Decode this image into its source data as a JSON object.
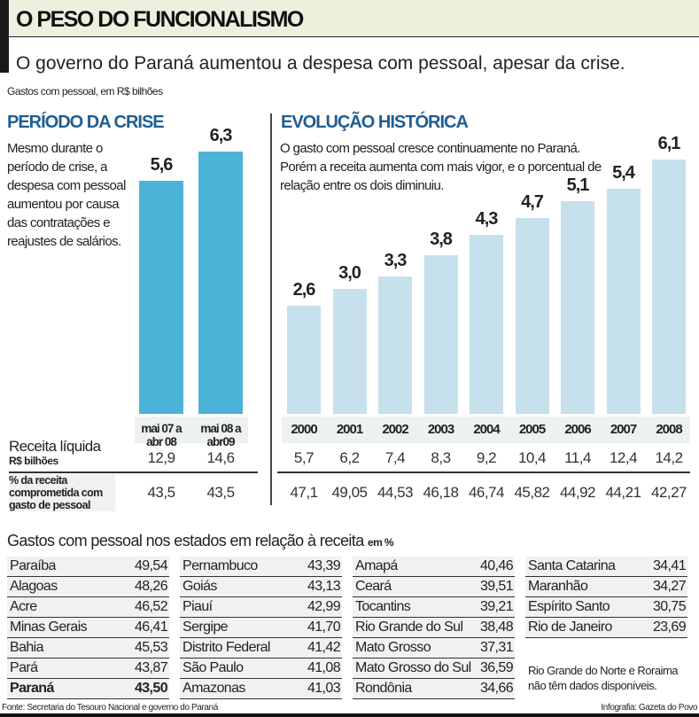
{
  "header": {
    "title": "O PESO DO FUNCIONALISMO",
    "subtitle": "O governo do Paraná aumentou a despesa com pessoal, apesar da crise.",
    "unit": "Gastos com pessoal, em R$ bilhões"
  },
  "colors": {
    "crisis_bar": "#4cb3d8",
    "history_bar": "#c6e0ec",
    "heading": "#1f5d92"
  },
  "chart_data": [
    {
      "type": "bar",
      "title": "PERÍODO DA CRISE",
      "description": "Mesmo durante o período de crise, a despesa com pessoal aumentou por causa das contratações e reajustes de salários.",
      "categories": [
        "mai 07 a abr 08",
        "mai 08 a abr09"
      ],
      "values": [
        5.6,
        6.3
      ],
      "labels": [
        "5,6",
        "6,3"
      ],
      "receita_liquida": [
        "12,9",
        "14,6"
      ],
      "percentual": [
        "43,5",
        "43,5"
      ]
    },
    {
      "type": "bar",
      "title": "EVOLUÇÃO HISTÓRICA",
      "description": "O gasto com pessoal cresce continuamente no Paraná. Porém a receita aumenta com mais vigor, e o porcentual de relação entre os dois diminuiu.",
      "categories": [
        "2000",
        "2001",
        "2002",
        "2003",
        "2004",
        "2005",
        "2006",
        "2007",
        "2008"
      ],
      "values": [
        2.6,
        3.0,
        3.3,
        3.8,
        4.3,
        4.7,
        5.1,
        5.4,
        6.1
      ],
      "labels": [
        "2,6",
        "3,0",
        "3,3",
        "3,8",
        "4,3",
        "4,7",
        "5,1",
        "5,4",
        "6,1"
      ],
      "receita_liquida": [
        "5,7",
        "6,2",
        "7,4",
        "8,3",
        "9,2",
        "10,4",
        "11,4",
        "12,4",
        "14,2"
      ],
      "percentual": [
        "47,1",
        "49,05",
        "44,53",
        "46,18",
        "46,74",
        "45,82",
        "44,92",
        "44,21",
        "42,27"
      ]
    }
  ],
  "rows": {
    "receita_label": "Receita líquida",
    "receita_unit": "R$ bilhões",
    "pct_label": "% da receita comprometida com gasto de pessoal"
  },
  "states": {
    "title": "Gastos com pessoal nos estados em relação à receita",
    "unit": "em %",
    "columns": [
      [
        [
          "Paraíba",
          "49,54"
        ],
        [
          "Alagoas",
          "48,26"
        ],
        [
          "Acre",
          "46,52"
        ],
        [
          "Minas Gerais",
          "46,41"
        ],
        [
          "Bahia",
          "45,53"
        ],
        [
          "Pará",
          "43,87"
        ],
        [
          "Paraná",
          "43,50"
        ]
      ],
      [
        [
          "Pernambuco",
          "43,39"
        ],
        [
          "Goiás",
          "43,13"
        ],
        [
          "Piauí",
          "42,99"
        ],
        [
          "Sergipe",
          "41,70"
        ],
        [
          "Distrito Federal",
          "41,42"
        ],
        [
          "São Paulo",
          "41,08"
        ],
        [
          "Amazonas",
          "41,03"
        ]
      ],
      [
        [
          "Amapá",
          "40,46"
        ],
        [
          "Ceará",
          "39,51"
        ],
        [
          "Tocantins",
          "39,21"
        ],
        [
          "Rio Grande do Sul",
          "38,48"
        ],
        [
          "Mato Grosso",
          "37,31"
        ],
        [
          "Mato Grosso do Sul",
          "36,59"
        ],
        [
          "Rondônia",
          "34,66"
        ]
      ],
      [
        [
          "Santa Catarina",
          "34,41"
        ],
        [
          "Maranhão",
          "34,27"
        ],
        [
          "Espírito Santo",
          "30,75"
        ],
        [
          "Rio de Janeiro",
          "23,69"
        ]
      ]
    ],
    "note": "Rio Grande do Norte e Roraima não têm dados disponíveis."
  },
  "footer": {
    "source": "Fonte: Secretaria do Tesouro Nacional e governo do Paraná",
    "credit": "Infografia: Gazeta do Povo"
  }
}
